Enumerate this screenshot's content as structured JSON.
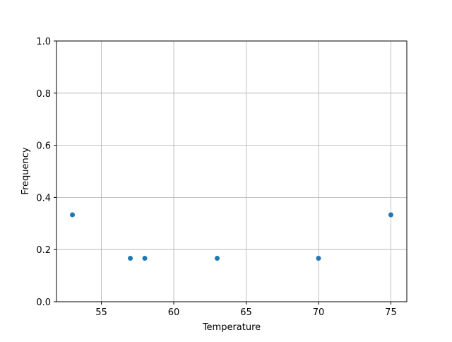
{
  "chart_data": {
    "type": "scatter",
    "title": "",
    "xlabel": "Temperature",
    "ylabel": "Frequency",
    "xlim": [
      51.9,
      76.1
    ],
    "ylim": [
      0,
      1
    ],
    "xticks": [
      55,
      60,
      65,
      70,
      75
    ],
    "xtick_labels": [
      "55",
      "60",
      "65",
      "70",
      "75"
    ],
    "yticks": [
      0,
      0.2,
      0.4,
      0.6,
      0.8,
      1.0
    ],
    "ytick_labels": [
      "0.0",
      "0.2",
      "0.4",
      "0.6",
      "0.8",
      "1.0"
    ],
    "grid": true,
    "color": "#1f77b4",
    "points": [
      {
        "x": 53,
        "y": 0.3333
      },
      {
        "x": 57,
        "y": 0.1667
      },
      {
        "x": 58,
        "y": 0.1667
      },
      {
        "x": 63,
        "y": 0.1667
      },
      {
        "x": 70,
        "y": 0.1667
      },
      {
        "x": 75,
        "y": 0.3333
      }
    ]
  }
}
